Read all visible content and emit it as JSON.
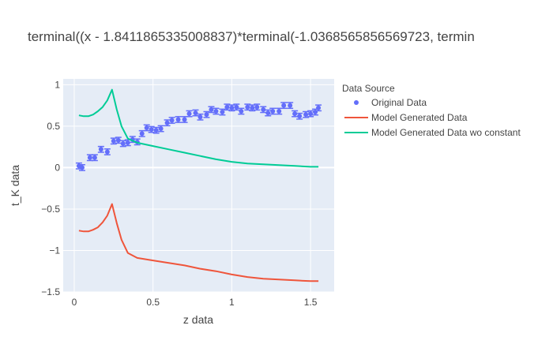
{
  "chart_data": {
    "type": "scatter",
    "title": "terminal((x - 1.8411865335008837)*terminal(-1.0368565856569723, termin",
    "xlabel": "z data",
    "ylabel": "t_K data",
    "xlim": [
      -0.07,
      1.65
    ],
    "ylim": [
      -1.5,
      1.07
    ],
    "x_ticks": [
      0,
      0.5,
      1,
      1.5
    ],
    "x_tick_labels": [
      "0",
      "0.5",
      "1",
      "1.5"
    ],
    "y_ticks": [
      -1.5,
      -1,
      -0.5,
      0,
      0.5,
      1
    ],
    "y_tick_labels": [
      "−1.5",
      "−1",
      "−0.5",
      "0",
      "0.5",
      "1"
    ],
    "grid": true,
    "legend": {
      "title": "Data Source",
      "placement": "right"
    },
    "series": [
      {
        "name": "Original Data",
        "mode": "markers+error_bars",
        "color": "#636efa",
        "x": [
          0.03,
          0.05,
          0.1,
          0.13,
          0.17,
          0.21,
          0.25,
          0.28,
          0.31,
          0.34,
          0.37,
          0.4,
          0.43,
          0.46,
          0.49,
          0.52,
          0.55,
          0.59,
          0.62,
          0.66,
          0.7,
          0.73,
          0.77,
          0.8,
          0.84,
          0.87,
          0.9,
          0.94,
          0.97,
          1.0,
          1.03,
          1.06,
          1.1,
          1.13,
          1.16,
          1.2,
          1.23,
          1.26,
          1.3,
          1.33,
          1.37,
          1.4,
          1.43,
          1.47,
          1.5,
          1.53,
          1.55
        ],
        "y": [
          0.02,
          0.0,
          0.12,
          0.12,
          0.22,
          0.19,
          0.32,
          0.33,
          0.29,
          0.3,
          0.34,
          0.31,
          0.41,
          0.48,
          0.46,
          0.45,
          0.47,
          0.54,
          0.57,
          0.58,
          0.58,
          0.65,
          0.66,
          0.61,
          0.64,
          0.7,
          0.68,
          0.67,
          0.73,
          0.72,
          0.73,
          0.68,
          0.73,
          0.72,
          0.73,
          0.7,
          0.66,
          0.68,
          0.68,
          0.75,
          0.75,
          0.65,
          0.62,
          0.64,
          0.65,
          0.67,
          0.72
        ],
        "error": 0.035
      },
      {
        "name": "Model Generated Data",
        "mode": "lines",
        "color": "#ef553b",
        "x": [
          0.03,
          0.06,
          0.09,
          0.12,
          0.15,
          0.18,
          0.21,
          0.24,
          0.27,
          0.3,
          0.34,
          0.4,
          0.5,
          0.6,
          0.7,
          0.8,
          0.9,
          1.0,
          1.1,
          1.2,
          1.3,
          1.4,
          1.5,
          1.55
        ],
        "y": [
          -0.76,
          -0.77,
          -0.77,
          -0.75,
          -0.72,
          -0.66,
          -0.58,
          -0.44,
          -0.67,
          -0.87,
          -1.03,
          -1.09,
          -1.12,
          -1.15,
          -1.18,
          -1.22,
          -1.25,
          -1.29,
          -1.32,
          -1.34,
          -1.35,
          -1.36,
          -1.37,
          -1.37
        ]
      },
      {
        "name": "Model Generated Data wo constant",
        "mode": "lines",
        "color": "#00cc96",
        "x": [
          0.03,
          0.06,
          0.09,
          0.12,
          0.15,
          0.18,
          0.21,
          0.24,
          0.27,
          0.3,
          0.34,
          0.4,
          0.5,
          0.6,
          0.7,
          0.8,
          0.9,
          1.0,
          1.1,
          1.2,
          1.3,
          1.4,
          1.5,
          1.55
        ],
        "y": [
          0.63,
          0.62,
          0.62,
          0.64,
          0.68,
          0.73,
          0.81,
          0.94,
          0.7,
          0.5,
          0.35,
          0.3,
          0.26,
          0.22,
          0.18,
          0.14,
          0.1,
          0.07,
          0.05,
          0.04,
          0.03,
          0.02,
          0.01,
          0.01
        ]
      }
    ]
  }
}
